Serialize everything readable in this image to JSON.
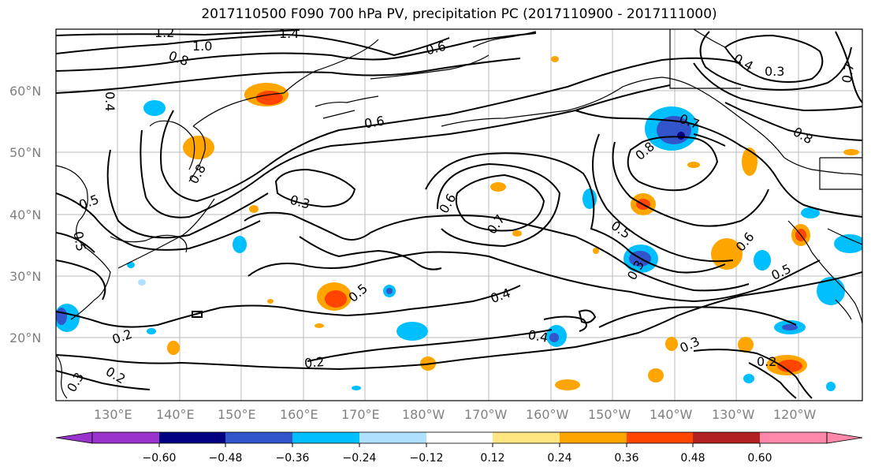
{
  "title": "2017110500 F090 700 hPa PV, precipitation PC (2017110900 - 2017111000)",
  "latitude_labels": [
    "60°N",
    "50°N",
    "40°N",
    "30°N",
    "20°N"
  ],
  "longitude_labels": [
    "130°E",
    "140°E",
    "150°E",
    "160°E",
    "170°E",
    "180°W",
    "170°W",
    "160°W",
    "150°W",
    "140°W",
    "130°W",
    "120°W"
  ],
  "contour_labels": [
    "1.2",
    "1.0",
    "1.4",
    "0.8",
    "0.6",
    "0.4",
    "0.6",
    "0.8",
    "0.5",
    "0.5",
    "0.3",
    "0.6",
    "0.7",
    "0.7",
    "0.8",
    "0.5",
    "0.3",
    "0.5",
    "0.4",
    "0.4",
    "0.2",
    "0.2",
    "0.3",
    "0.2",
    "0.2",
    "0.4",
    "0.3",
    "0.6",
    "0.5",
    "0.8",
    "0.7",
    "0.3"
  ],
  "colorbar": {
    "colors": [
      "#9933cc",
      "#000080",
      "#3355cc",
      "#00bfff",
      "#b0e0ff",
      "#ffffff",
      "#ffe680",
      "#ffa500",
      "#ff4500",
      "#b22222",
      "#ff88aa"
    ],
    "tick_labels": [
      "−0.60",
      "−0.48",
      "−0.36",
      "−0.24",
      "−0.12",
      "0.12",
      "0.24",
      "0.36",
      "0.48",
      "0.60"
    ]
  }
}
